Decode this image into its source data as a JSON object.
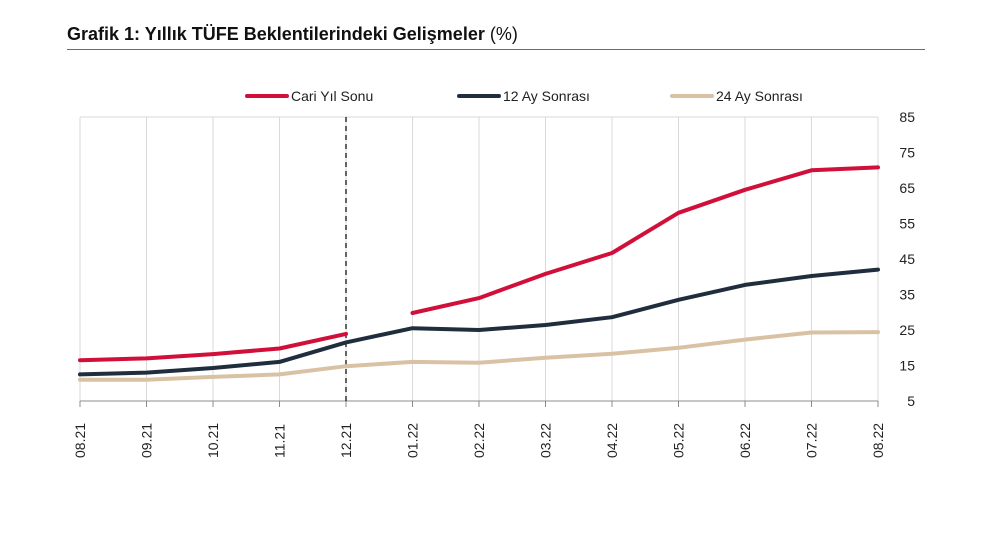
{
  "title": {
    "main": "Grafik 1: Yıllık TÜFE Beklentilerindeki Gelişmeler",
    "unit": "(%)"
  },
  "chart_data": {
    "type": "line",
    "categories": [
      "08.21",
      "09.21",
      "10.21",
      "11.21",
      "12.21",
      "01.22",
      "02.22",
      "03.22",
      "04.22",
      "05.22",
      "06.22",
      "07.22",
      "08.22"
    ],
    "series": [
      {
        "name": "Cari Yıl Sonu",
        "color": "#d0103a",
        "values": [
          16.5,
          17.0,
          18.2,
          19.8,
          23.9,
          29.8,
          34.0,
          40.8,
          46.7,
          58.0,
          64.5,
          70.0,
          70.8
        ]
      },
      {
        "name": "12 Ay Sonrası",
        "color": "#1f2d3d",
        "values": [
          12.5,
          13.0,
          14.3,
          16.0,
          21.5,
          25.5,
          25.0,
          26.4,
          28.6,
          33.5,
          37.7,
          40.2,
          42.0
        ]
      },
      {
        "name": "24 Ay Sonrası",
        "color": "#d9c2a4",
        "values": [
          11.0,
          11.0,
          11.8,
          12.5,
          14.8,
          16.0,
          15.8,
          17.2,
          18.3,
          20.0,
          22.3,
          24.3,
          24.4
        ]
      }
    ],
    "segment_break_after": [
      "12.21"
    ],
    "y_ticks": [
      5,
      15,
      25,
      35,
      45,
      55,
      65,
      75,
      85
    ],
    "ylim": [
      5,
      85
    ],
    "y_axis_side": "right",
    "vertical_marker": "12.21",
    "legend_position": "top",
    "grid": "vertical"
  }
}
